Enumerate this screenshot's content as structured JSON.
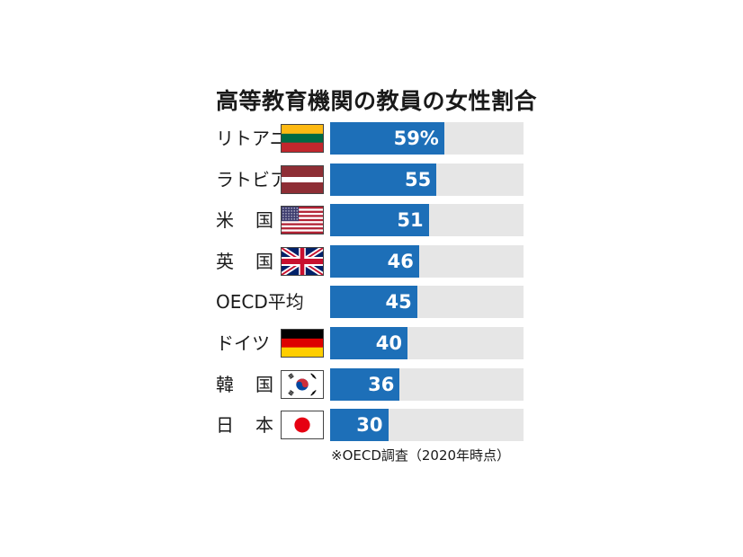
{
  "chart_data": {
    "type": "bar",
    "orientation": "horizontal",
    "title": "高等教育機関の教員の女性割合",
    "categories": [
      "リトアニア",
      "ラトビア",
      "米国",
      "英国",
      "OECD平均",
      "ドイツ",
      "韓国",
      "日本"
    ],
    "values": [
      59,
      55,
      51,
      46,
      45,
      40,
      36,
      30
    ],
    "value_labels": [
      "59%",
      "55",
      "51",
      "46",
      "45",
      "40",
      "36",
      "30"
    ],
    "xlim": [
      0,
      100
    ],
    "grid": false,
    "legend": "none",
    "bar_color": "#1d6fb8",
    "track_color": "#e6e6e6",
    "footnote": "※OECD調査（2020年時点）"
  },
  "rows": [
    {
      "label_chars": [
        "リトアニア"
      ],
      "flag": "lithuania-flag-icon"
    },
    {
      "label_chars": [
        "ラトビア"
      ],
      "flag": "latvia-flag-icon"
    },
    {
      "label_chars": [
        "米",
        "国"
      ],
      "flag": "usa-flag-icon"
    },
    {
      "label_chars": [
        "英",
        "国"
      ],
      "flag": "uk-flag-icon"
    },
    {
      "label_chars": [
        "OECD平均"
      ],
      "flag": ""
    },
    {
      "label_chars": [
        "ドイツ"
      ],
      "flag": "germany-flag-icon"
    },
    {
      "label_chars": [
        "韓",
        "国"
      ],
      "flag": "south-korea-flag-icon"
    },
    {
      "label_chars": [
        "日",
        "本"
      ],
      "flag": "japan-flag-icon"
    }
  ]
}
